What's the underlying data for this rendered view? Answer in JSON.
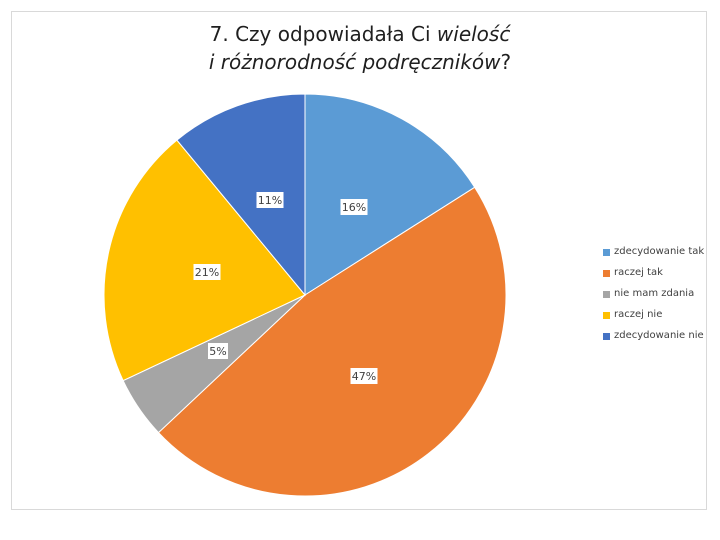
{
  "title": {
    "line1_prefix": "7. Czy odpowiadała Ci ",
    "line1_italic": "wielość",
    "line2_italic": "i różnorodność podręczników",
    "line2_suffix": "?"
  },
  "chart_data": {
    "type": "pie",
    "start_angle_deg": 0,
    "direction": "clockwise",
    "legend_position": "right",
    "slices": [
      {
        "label": "zdecydowanie tak",
        "value": 16,
        "data_label": "16%",
        "color": "#5b9bd5"
      },
      {
        "label": "raczej tak",
        "value": 47,
        "data_label": "47%",
        "color": "#ed7d31"
      },
      {
        "label": "nie mam zdania",
        "value": 5,
        "data_label": "5%",
        "color": "#a5a5a5"
      },
      {
        "label": "raczej nie",
        "value": 21,
        "data_label": "21%",
        "color": "#ffc000"
      },
      {
        "label": "zdecydowanie nie",
        "value": 11,
        "data_label": "11%",
        "color": "#4472c4"
      }
    ]
  }
}
